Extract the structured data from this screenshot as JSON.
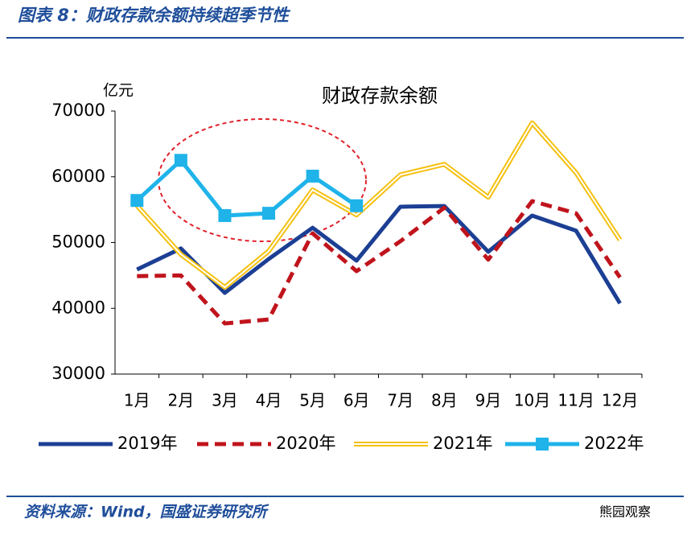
{
  "header": {
    "title": "图表 8：财政存款余额持续超季节性"
  },
  "chart_data": {
    "type": "line",
    "title": "财政存款余额",
    "y_label": "亿元",
    "categories": [
      "1月",
      "2月",
      "3月",
      "4月",
      "5月",
      "6月",
      "7月",
      "8月",
      "9月",
      "10月",
      "11月",
      "12月"
    ],
    "ylim": [
      30000,
      70000
    ],
    "yticks": [
      30000,
      40000,
      50000,
      60000,
      70000
    ],
    "legend": "bottom",
    "series": [
      {
        "name": "2019年",
        "color": "#1c3f94",
        "style": "solid",
        "values": [
          45900,
          49100,
          42350,
          47500,
          52250,
          47250,
          55450,
          55550,
          48600,
          54100,
          51800,
          40750
        ]
      },
      {
        "name": "2020年",
        "color": "#c0141c",
        "style": "dashed",
        "values": [
          44900,
          45000,
          37700,
          38300,
          51400,
          45650,
          50200,
          55300,
          47400,
          56300,
          54450,
          44700
        ]
      },
      {
        "name": "2021年",
        "color": "#f5c010",
        "style": "double",
        "values": [
          55600,
          48200,
          43200,
          48700,
          58000,
          54200,
          60300,
          61900,
          56900,
          68200,
          60600,
          50400
        ]
      },
      {
        "name": "2022年",
        "color": "#1fb3ea",
        "style": "solid",
        "marker": "square",
        "values": [
          56400,
          62500,
          54100,
          54450,
          60100,
          55600,
          null,
          null,
          null,
          null,
          null,
          null
        ]
      }
    ]
  },
  "footer": {
    "source": "资料来源：Wind，国盛证券研究所",
    "watermark": "熊园观察"
  }
}
